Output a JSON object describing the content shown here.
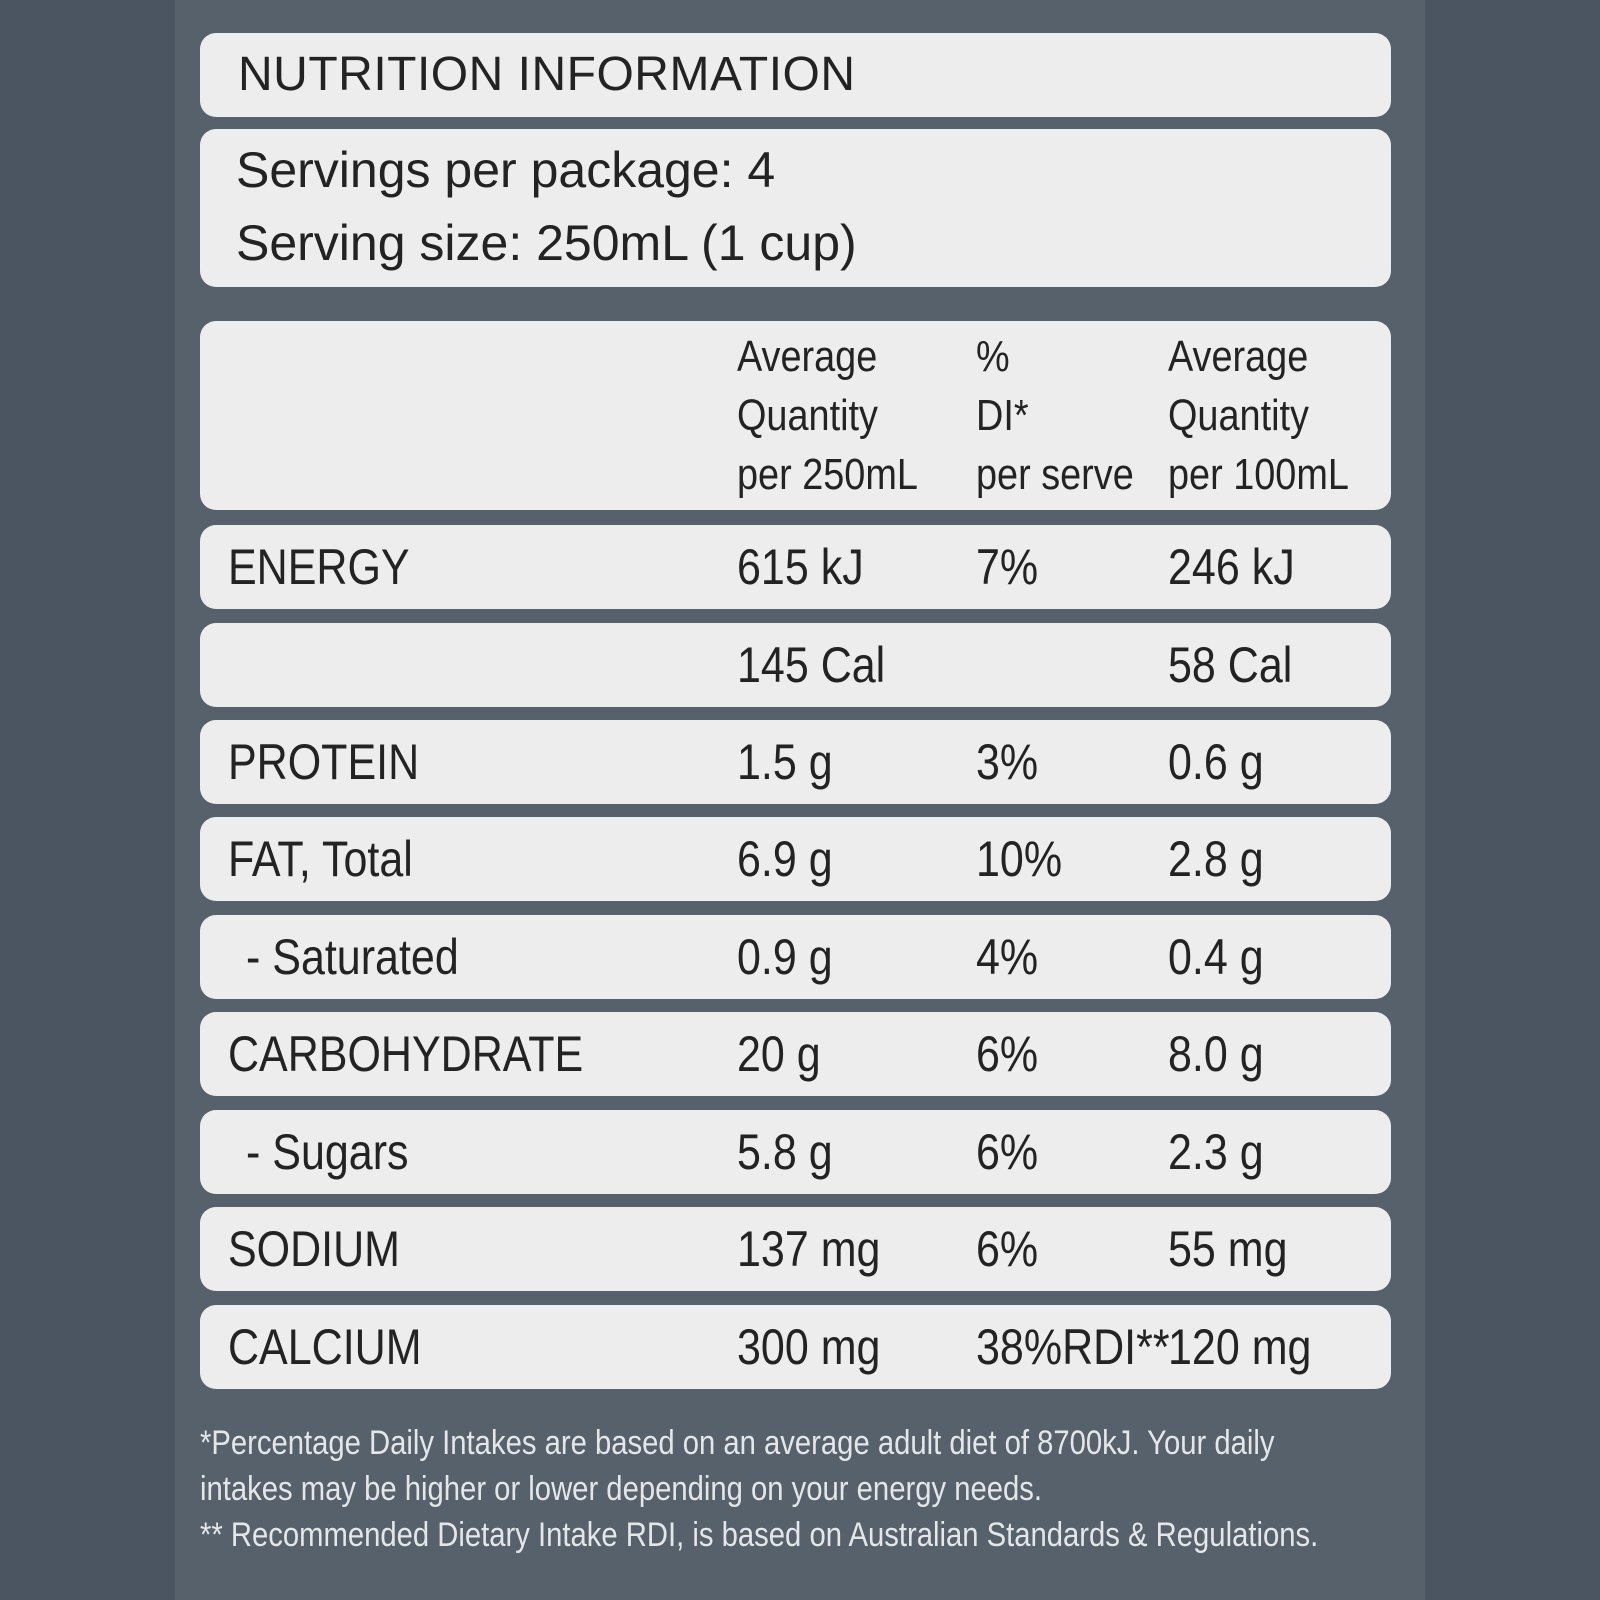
{
  "title": "NUTRITION INFORMATION",
  "servings_per_package": "Servings per package: 4",
  "serving_size": "Serving size: 250mL (1 cup)",
  "headers": {
    "per_serve": [
      "Average",
      "Quantity",
      "per 250mL"
    ],
    "di": [
      "%",
      "DI*",
      "per serve"
    ],
    "per_100": [
      "Average",
      "Quantity",
      "per 100mL"
    ]
  },
  "rows": [
    {
      "name": "ENERGY",
      "per_serve": "615 kJ",
      "di": "7%",
      "per_100": "246 kJ"
    },
    {
      "name": "",
      "per_serve": "145 Cal",
      "di": "",
      "per_100": "58 Cal"
    },
    {
      "name": "PROTEIN",
      "per_serve": "1.5 g",
      "di": "3%",
      "per_100": "0.6 g"
    },
    {
      "name": "FAT, Total",
      "per_serve": "6.9 g",
      "di": "10%",
      "per_100": "2.8 g"
    },
    {
      "name": "- Saturated",
      "per_serve": "0.9 g",
      "di": "4%",
      "per_100": "0.4 g"
    },
    {
      "name": "CARBOHYDRATE",
      "per_serve": "20 g",
      "di": "6%",
      "per_100": "8.0 g"
    },
    {
      "name": "- Sugars",
      "per_serve": "5.8 g",
      "di": "6%",
      "per_100": "2.3 g"
    },
    {
      "name": "SODIUM",
      "per_serve": "137 mg",
      "di": "6%",
      "per_100": "55 mg"
    },
    {
      "name": "CALCIUM",
      "per_serve": "300 mg",
      "di": "38%RDI**",
      "per_100": "120 mg"
    }
  ],
  "footnotes": [
    "*Percentage Daily Intakes are based on an average adult diet of 8700kJ. Your daily",
    "intakes may be higher or lower depending on your energy needs.",
    "** Recommended Dietary Intake RDI, is based on Australian Standards & Regulations."
  ]
}
